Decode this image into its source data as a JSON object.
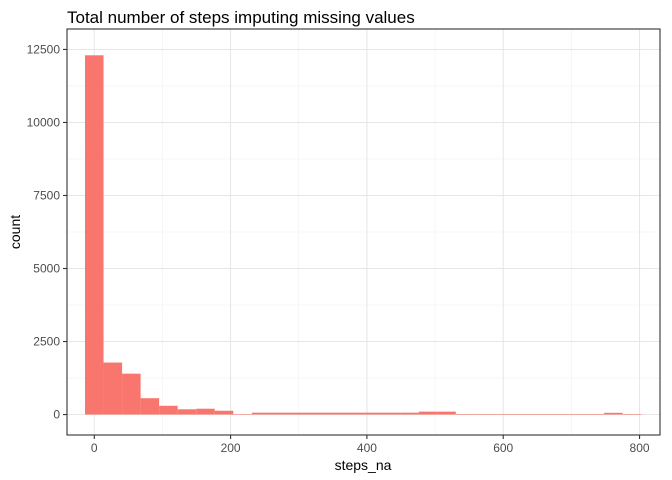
{
  "chart_data": {
    "type": "bar",
    "title": "Total number of steps imputing missing values",
    "xlabel": "steps_na",
    "ylabel": "count",
    "xlim": [
      -40,
      830
    ],
    "ylim": [
      -700,
      13200
    ],
    "x_ticks": [
      0,
      200,
      400,
      600,
      800
    ],
    "y_ticks": [
      0,
      2500,
      5000,
      7500,
      10000,
      12500
    ],
    "x_tick_labels": [
      "0",
      "200",
      "400",
      "600",
      "800"
    ],
    "y_tick_labels": [
      "0",
      "2500",
      "5000",
      "7500",
      "10000",
      "12500"
    ],
    "bin_width": 27.2,
    "bins": [
      {
        "x": 0,
        "count": 12300
      },
      {
        "x": 27.2,
        "count": 1780
      },
      {
        "x": 54.4,
        "count": 1400
      },
      {
        "x": 81.6,
        "count": 560
      },
      {
        "x": 108.8,
        "count": 300
      },
      {
        "x": 136.0,
        "count": 180
      },
      {
        "x": 163.2,
        "count": 200
      },
      {
        "x": 190.4,
        "count": 130
      },
      {
        "x": 217.6,
        "count": 15
      },
      {
        "x": 244.8,
        "count": 65
      },
      {
        "x": 272.0,
        "count": 65
      },
      {
        "x": 299.2,
        "count": 65
      },
      {
        "x": 326.4,
        "count": 65
      },
      {
        "x": 353.6,
        "count": 65
      },
      {
        "x": 380.8,
        "count": 65
      },
      {
        "x": 408.0,
        "count": 65
      },
      {
        "x": 435.2,
        "count": 65
      },
      {
        "x": 462.4,
        "count": 65
      },
      {
        "x": 489.6,
        "count": 100
      },
      {
        "x": 516.8,
        "count": 100
      },
      {
        "x": 544.0,
        "count": 20
      },
      {
        "x": 571.2,
        "count": 20
      },
      {
        "x": 598.4,
        "count": 20
      },
      {
        "x": 625.6,
        "count": 20
      },
      {
        "x": 652.8,
        "count": 20
      },
      {
        "x": 680.0,
        "count": 20
      },
      {
        "x": 707.2,
        "count": 20
      },
      {
        "x": 734.4,
        "count": 20
      },
      {
        "x": 761.6,
        "count": 60
      },
      {
        "x": 788.8,
        "count": 20
      }
    ],
    "fill_color": "#F8766D",
    "grid": true,
    "legend": "none"
  }
}
